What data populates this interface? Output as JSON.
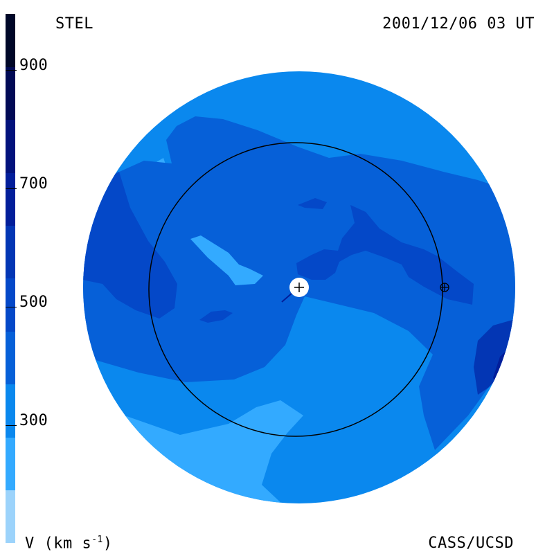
{
  "observatory": "STEL",
  "timestamp": "2001/12/06 03 UT",
  "credit": "CASS/UCSD",
  "colorbar": {
    "unit_prefix": "V (km s",
    "unit_exp": "-1",
    "unit_suffix": ")",
    "ticks": [
      "900",
      "700",
      "500",
      "300"
    ],
    "colors": [
      "#9cd3fb",
      "#33aaff",
      "#0a88ee",
      "#0660d8",
      "#0448c8",
      "#0336b4",
      "#021e9a",
      "#02127c",
      "#010a55",
      "#000728"
    ]
  },
  "map": {
    "colors": {
      "light": "#33aaff",
      "base": "#0a88ee",
      "mid": "#0660d8",
      "dark": "#0448c8",
      "darker": "#0336b4",
      "deepest": "#021e9a"
    }
  }
}
